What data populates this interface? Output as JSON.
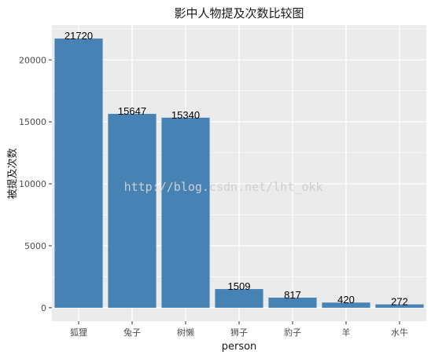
{
  "chart_data": {
    "type": "bar",
    "title": "影中人物提及次数比较图",
    "xlabel": "person",
    "ylabel": "被提及次数",
    "categories": [
      "狐狸",
      "兔子",
      "树懒",
      "狮子",
      "豹子",
      "羊",
      "水牛"
    ],
    "values": [
      21720,
      15647,
      15340,
      1509,
      817,
      420,
      272
    ],
    "value_labels": [
      "21720",
      "15647",
      "15340",
      "1509",
      "817",
      "420",
      "272"
    ],
    "y_ticks": [
      0,
      5000,
      10000,
      15000,
      20000
    ],
    "y_tick_labels": [
      "0",
      "5000",
      "10000",
      "15000",
      "20000"
    ],
    "ylim": [
      -1086,
      22806
    ],
    "grid": true,
    "legend": "none",
    "bar_color": "#4682b4",
    "panel_color": "#ebebeb",
    "grid_color": "#ffffff"
  },
  "watermark": "http://blog.csdn.net/lht_okk"
}
